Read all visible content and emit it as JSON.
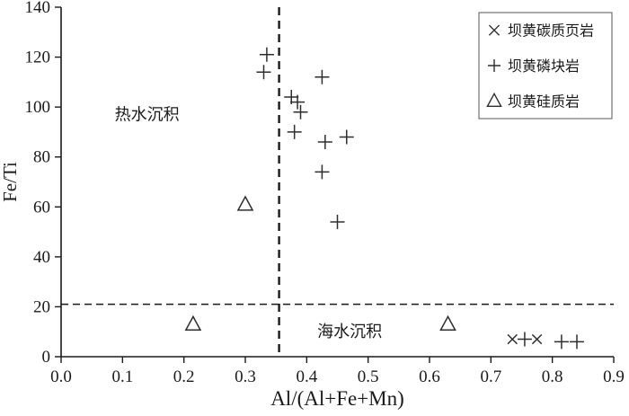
{
  "colors": {
    "axis": "#1a1a1a",
    "marker": "#2e2e2e",
    "background": "#ffffff",
    "legend_border": "#555555"
  },
  "chart_data": {
    "type": "scatter",
    "title": "",
    "xlabel": "Al/(Al+Fe+Mn)",
    "ylabel": "Fe/Ti",
    "xlim": [
      0.0,
      0.9
    ],
    "ylim": [
      0,
      140
    ],
    "xticks": [
      0.0,
      0.1,
      0.2,
      0.3,
      0.4,
      0.5,
      0.6,
      0.7,
      0.8,
      0.9
    ],
    "yticks": [
      0,
      20,
      40,
      60,
      80,
      100,
      120,
      140
    ],
    "grid": false,
    "reference_lines": {
      "vertical_x": 0.355,
      "horizontal_y": 21
    },
    "annotations": [
      {
        "text": "热水沉积",
        "x": 0.14,
        "y": 97
      },
      {
        "text": "海水沉积",
        "x": 0.47,
        "y": 10
      }
    ],
    "legend": {
      "position": "top-right",
      "entries": [
        {
          "marker": "x",
          "label": "坝黄碳质页岩"
        },
        {
          "marker": "plus",
          "label": "坝黄磷块岩"
        },
        {
          "marker": "triangle",
          "label": "坝黄硅质岩"
        }
      ]
    },
    "series": [
      {
        "name": "坝黄碳质页岩",
        "marker": "x",
        "points": [
          [
            0.735,
            7
          ],
          [
            0.775,
            7
          ]
        ]
      },
      {
        "name": "坝黄磷块岩",
        "marker": "plus",
        "points": [
          [
            0.335,
            121
          ],
          [
            0.33,
            114
          ],
          [
            0.375,
            104
          ],
          [
            0.385,
            102
          ],
          [
            0.39,
            98
          ],
          [
            0.38,
            90
          ],
          [
            0.425,
            112
          ],
          [
            0.43,
            86
          ],
          [
            0.465,
            88
          ],
          [
            0.425,
            74
          ],
          [
            0.45,
            54
          ],
          [
            0.755,
            7
          ],
          [
            0.815,
            6
          ],
          [
            0.84,
            6
          ]
        ]
      },
      {
        "name": "坝黄硅质岩",
        "marker": "triangle",
        "points": [
          [
            0.3,
            61
          ],
          [
            0.215,
            13
          ],
          [
            0.63,
            13
          ]
        ]
      }
    ]
  }
}
